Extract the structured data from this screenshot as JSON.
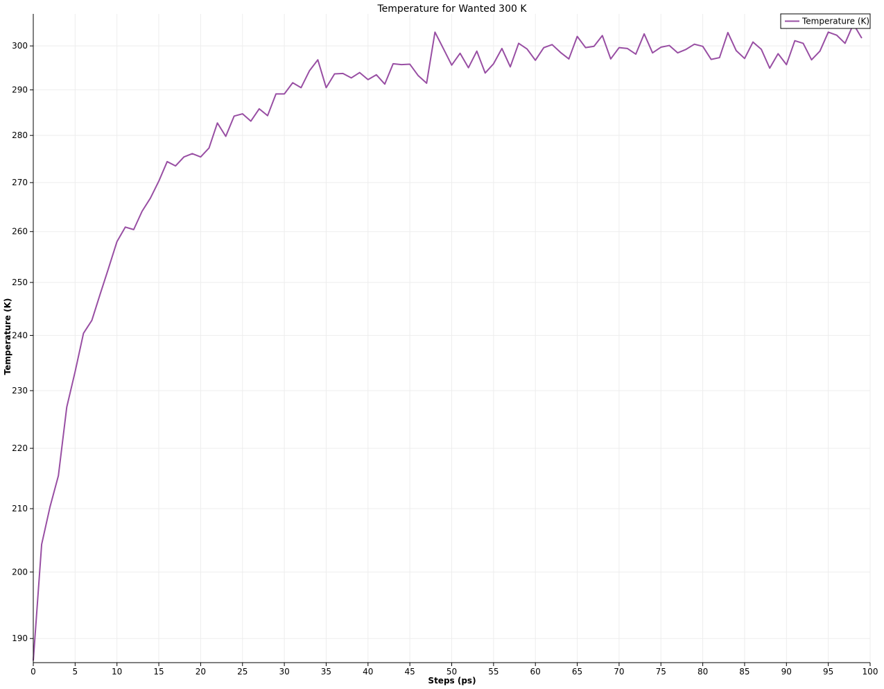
{
  "chart_data": {
    "type": "line",
    "title": "Temperature for Wanted 300 K",
    "xlabel": "Steps (ps)",
    "ylabel": "Temperature (K)",
    "xlim": [
      0,
      100
    ],
    "ylim": [
      186.5,
      307.5
    ],
    "yscale": "log",
    "x_ticks": [
      0,
      5,
      10,
      15,
      20,
      25,
      30,
      35,
      40,
      45,
      50,
      55,
      60,
      65,
      70,
      75,
      80,
      85,
      90,
      95,
      100
    ],
    "y_ticks": [
      190,
      200,
      210,
      220,
      230,
      240,
      250,
      260,
      270,
      280,
      290,
      300
    ],
    "grid": true,
    "legend_position": "top-right",
    "series": [
      {
        "name": "Temperature (K)",
        "color": "#984ea3",
        "x": [
          0,
          1,
          2,
          3,
          4,
          5,
          6,
          7,
          8,
          9,
          10,
          11,
          12,
          13,
          14,
          15,
          16,
          17,
          18,
          19,
          20,
          21,
          22,
          23,
          24,
          25,
          26,
          27,
          28,
          29,
          30,
          31,
          32,
          33,
          34,
          35,
          36,
          37,
          38,
          39,
          40,
          41,
          42,
          43,
          44,
          45,
          46,
          47,
          48,
          49,
          50,
          51,
          52,
          53,
          54,
          55,
          56,
          57,
          58,
          59,
          60,
          61,
          62,
          63,
          64,
          65,
          66,
          67,
          68,
          69,
          70,
          71,
          72,
          73,
          74,
          75,
          76,
          77,
          78,
          79,
          80,
          81,
          82,
          83,
          84,
          85,
          86,
          87,
          88,
          89,
          90,
          91,
          92,
          93,
          94,
          95,
          96,
          97,
          98,
          99
        ],
        "y": [
          186.8,
          204.3,
          210.3,
          215.4,
          227.1,
          233.4,
          240.4,
          242.8,
          247.8,
          252.8,
          258.0,
          260.9,
          260.4,
          264.1,
          266.8,
          270.3,
          274.4,
          273.5,
          275.4,
          276.1,
          275.4,
          277.3,
          282.7,
          279.8,
          284.2,
          284.7,
          283.1,
          285.8,
          284.3,
          289.1,
          289.1,
          291.6,
          290.5,
          294.3,
          296.8,
          290.5,
          293.6,
          293.7,
          292.7,
          293.9,
          292.3,
          293.4,
          291.3,
          295.9,
          295.7,
          295.8,
          293.2,
          291.5,
          303.2,
          299.4,
          295.6,
          298.3,
          295.0,
          298.8,
          293.8,
          295.9,
          299.4,
          295.2,
          300.6,
          299.3,
          296.7,
          299.6,
          300.3,
          298.5,
          297.0,
          302.2,
          299.6,
          299.9,
          302.4,
          297.0,
          299.6,
          299.4,
          298.1,
          302.8,
          298.4,
          299.7,
          300.1,
          298.4,
          299.2,
          300.4,
          299.9,
          296.9,
          297.3,
          303.1,
          298.9,
          297.1,
          300.9,
          299.2,
          294.9,
          298.2,
          295.7,
          301.2,
          300.6,
          296.8,
          298.8,
          303.2,
          302.5,
          300.6,
          305.1,
          301.8
        ]
      }
    ]
  }
}
